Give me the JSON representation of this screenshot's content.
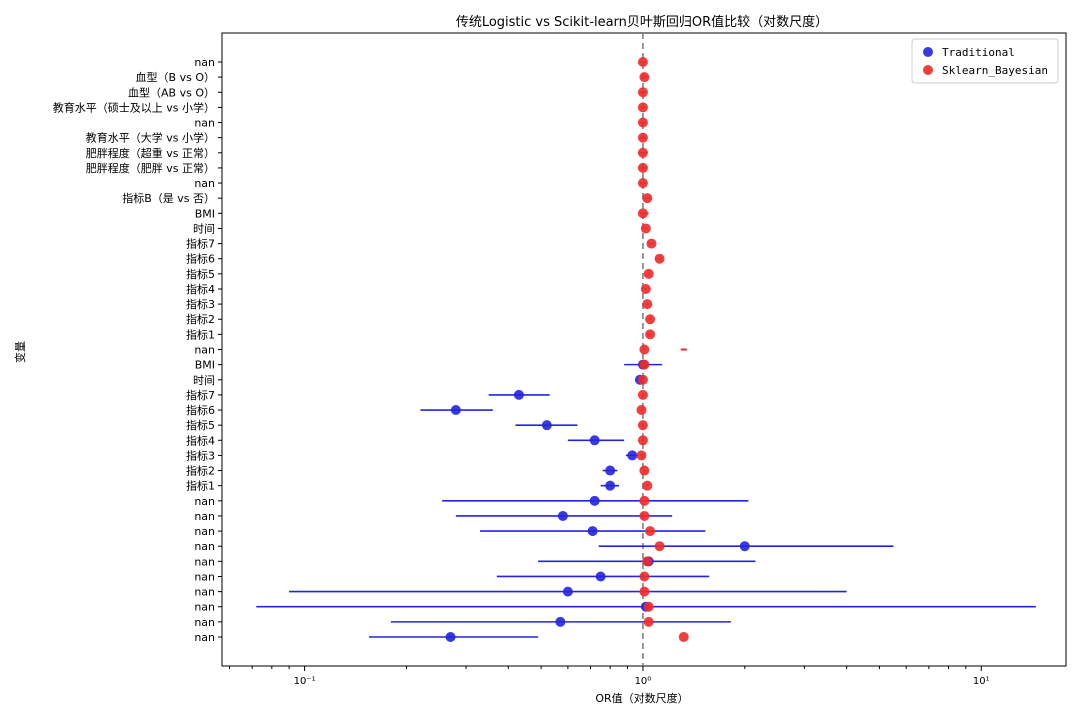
{
  "chart_data": {
    "type": "scatter",
    "title": "传统Logistic vs Scikit-learn贝叶斯回归OR值比较（对数尺度）",
    "xlabel": "OR值（对数尺度）",
    "ylabel": "变量",
    "xscale": "log",
    "xlim": [
      0.057,
      17.8
    ],
    "xticks": [
      {
        "value": 0.1,
        "label": "10⁻¹"
      },
      {
        "value": 1,
        "label": "10⁰"
      },
      {
        "value": 10,
        "label": "10¹"
      }
    ],
    "reference_line": {
      "x": 1,
      "style": "dashed",
      "color": "#808080"
    },
    "legend": {
      "position": "top-right",
      "entries": [
        "Traditional",
        "Sklearn_Bayesian"
      ]
    },
    "categories": [
      "nan",
      "nan",
      "nan",
      "nan",
      "nan",
      "nan",
      "nan",
      "nan",
      "nan",
      "nan",
      "指标1",
      "指标2",
      "指标3",
      "指标4",
      "指标5",
      "指标6",
      "指标7",
      "时间",
      "BMI",
      "nan",
      "指标1",
      "指标2",
      "指标3",
      "指标4",
      "指标5",
      "指标6",
      "指标7",
      "时间",
      "BMI",
      "指标B（是 vs 否）",
      "nan",
      "肥胖程度（肥胖 vs 正常）",
      "肥胖程度（超重 vs 正常）",
      "教育水平（大学 vs 小学）",
      "nan",
      "教育水平（硕士及以上 vs 小学）",
      "血型（AB vs O）",
      "血型（B vs O）",
      "nan"
    ],
    "series": [
      {
        "name": "Traditional",
        "color": "#2424e0",
        "points": [
          {
            "y": 0,
            "or": 0.27,
            "lo": 0.155,
            "hi": 0.49
          },
          {
            "y": 1,
            "or": 0.57,
            "lo": 0.18,
            "hi": 1.82
          },
          {
            "y": 2,
            "or": 1.02,
            "lo": 0.072,
            "hi": 14.5
          },
          {
            "y": 3,
            "or": 0.6,
            "lo": 0.09,
            "hi": 4.0
          },
          {
            "y": 4,
            "or": 0.75,
            "lo": 0.37,
            "hi": 1.57
          },
          {
            "y": 5,
            "or": 1.04,
            "lo": 0.49,
            "hi": 2.15
          },
          {
            "y": 6,
            "or": 2.0,
            "lo": 0.74,
            "hi": 5.5
          },
          {
            "y": 7,
            "or": 0.71,
            "lo": 0.33,
            "hi": 1.53
          },
          {
            "y": 8,
            "or": 0.58,
            "lo": 0.28,
            "hi": 1.22
          },
          {
            "y": 9,
            "or": 0.72,
            "lo": 0.255,
            "hi": 2.05
          },
          {
            "y": 10,
            "or": 0.8,
            "lo": 0.75,
            "hi": 0.85
          },
          {
            "y": 11,
            "or": 0.8,
            "lo": 0.76,
            "hi": 0.84
          },
          {
            "y": 12,
            "or": 0.93,
            "lo": 0.89,
            "hi": 0.97
          },
          {
            "y": 13,
            "or": 0.72,
            "lo": 0.6,
            "hi": 0.88
          },
          {
            "y": 14,
            "or": 0.52,
            "lo": 0.42,
            "hi": 0.64
          },
          {
            "y": 15,
            "or": 0.28,
            "lo": 0.22,
            "hi": 0.36
          },
          {
            "y": 16,
            "or": 0.43,
            "lo": 0.35,
            "hi": 0.53
          },
          {
            "y": 17,
            "or": 0.98,
            "lo": 0.96,
            "hi": 1.0
          },
          {
            "y": 18,
            "or": 1.0,
            "lo": 0.88,
            "hi": 1.14
          }
        ]
      },
      {
        "name": "Sklearn_Bayesian",
        "color": "#ee2a2a",
        "points": [
          {
            "y": 0,
            "or": 1.32,
            "lo": 1.32,
            "hi": 1.32
          },
          {
            "y": 1,
            "or": 1.04,
            "lo": 1.03,
            "hi": 1.05
          },
          {
            "y": 2,
            "or": 1.04,
            "lo": 1.03,
            "hi": 1.05
          },
          {
            "y": 3,
            "or": 1.01,
            "lo": 1.0,
            "hi": 1.02
          },
          {
            "y": 4,
            "or": 1.01,
            "lo": 1.0,
            "hi": 1.02
          },
          {
            "y": 5,
            "or": 1.03,
            "lo": 1.02,
            "hi": 1.04
          },
          {
            "y": 6,
            "or": 1.12,
            "lo": 1.11,
            "hi": 1.13
          },
          {
            "y": 7,
            "or": 1.05,
            "lo": 1.04,
            "hi": 1.06
          },
          {
            "y": 8,
            "or": 1.01,
            "lo": 1.0,
            "hi": 1.02
          },
          {
            "y": 9,
            "or": 1.01,
            "lo": 1.0,
            "hi": 1.02
          },
          {
            "y": 10,
            "or": 1.03,
            "lo": 1.02,
            "hi": 1.04
          },
          {
            "y": 11,
            "or": 1.01,
            "lo": 1.0,
            "hi": 1.02
          },
          {
            "y": 12,
            "or": 0.99,
            "lo": 0.98,
            "hi": 1.0
          },
          {
            "y": 13,
            "or": 1.0,
            "lo": 0.99,
            "hi": 1.01
          },
          {
            "y": 14,
            "or": 1.0,
            "lo": 0.99,
            "hi": 1.01
          },
          {
            "y": 15,
            "or": 0.99,
            "lo": 0.98,
            "hi": 1.0
          },
          {
            "y": 16,
            "or": 1.0,
            "lo": 0.99,
            "hi": 1.01
          },
          {
            "y": 17,
            "or": 1.0,
            "lo": 0.99,
            "hi": 1.01
          },
          {
            "y": 18,
            "or": 1.01,
            "lo": 1.0,
            "hi": 1.02
          },
          {
            "y": 19,
            "or": 1.01,
            "lo": 1.0,
            "hi": 1.02
          },
          {
            "y": 20,
            "or": 1.05,
            "lo": 1.03,
            "hi": 1.06
          },
          {
            "y": 21,
            "or": 1.05,
            "lo": 1.04,
            "hi": 1.06
          },
          {
            "y": 22,
            "or": 1.03,
            "lo": 1.02,
            "hi": 1.04
          },
          {
            "y": 23,
            "or": 1.02,
            "lo": 1.01,
            "hi": 1.03
          },
          {
            "y": 24,
            "or": 1.04,
            "lo": 1.03,
            "hi": 1.05
          },
          {
            "y": 25,
            "or": 1.12,
            "lo": 1.1,
            "hi": 1.14
          },
          {
            "y": 26,
            "or": 1.06,
            "lo": 1.04,
            "hi": 1.08
          },
          {
            "y": 27,
            "or": 1.02,
            "lo": 1.01,
            "hi": 1.03
          },
          {
            "y": 28,
            "or": 1.0,
            "lo": 0.98,
            "hi": 1.04
          },
          {
            "y": 29,
            "or": 1.03,
            "lo": 1.01,
            "hi": 1.05
          },
          {
            "y": 30,
            "or": 1.0,
            "lo": 0.98,
            "hi": 1.02
          },
          {
            "y": 31,
            "or": 1.0,
            "lo": 0.97,
            "hi": 1.03
          },
          {
            "y": 32,
            "or": 1.0,
            "lo": 0.97,
            "hi": 1.03
          },
          {
            "y": 33,
            "or": 1.0,
            "lo": 0.98,
            "hi": 1.02
          },
          {
            "y": 34,
            "or": 1.0,
            "lo": 0.98,
            "hi": 1.02
          },
          {
            "y": 35,
            "or": 1.0,
            "lo": 0.98,
            "hi": 1.02
          },
          {
            "y": 36,
            "or": 1.0,
            "lo": 0.98,
            "hi": 1.02
          },
          {
            "y": 37,
            "or": 1.01,
            "lo": 0.99,
            "hi": 1.03
          },
          {
            "y": 38,
            "or": 1.0,
            "lo": 0.98,
            "hi": 1.02
          }
        ]
      }
    ],
    "extra_markers": [
      {
        "series": "Sklearn_Bayesian",
        "y": 19,
        "or": 1.32,
        "style": "dash"
      }
    ]
  }
}
